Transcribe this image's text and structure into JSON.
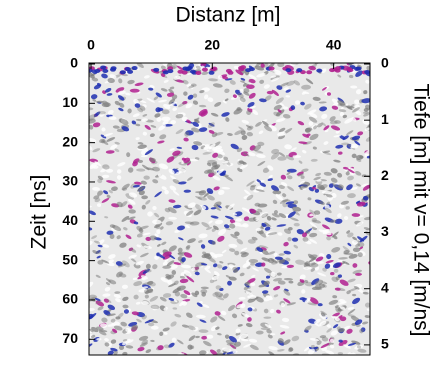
{
  "chart_data": {
    "type": "image",
    "x_label": "Distanz [m]",
    "y_label": "Zeit [ns]",
    "y2_label": "Tiefe [m] mit v= 0,14 [m/ns]",
    "xlim": [
      0,
      46
    ],
    "xticks": [
      0,
      20,
      40
    ],
    "ylim": [
      0,
      74
    ],
    "yticks": [
      0,
      10,
      20,
      30,
      40,
      50,
      60,
      70
    ],
    "y2lim": [
      0,
      5.18
    ],
    "y2ticks": [
      0,
      1,
      2,
      3,
      4,
      5
    ]
  }
}
